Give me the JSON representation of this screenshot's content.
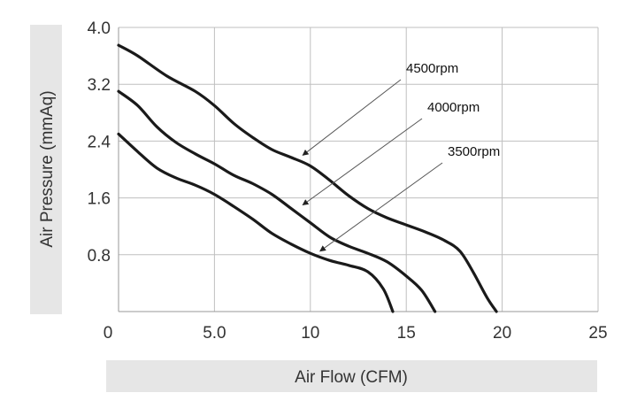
{
  "chart_data": {
    "type": "line",
    "xlabel": "Air Flow (CFM)",
    "ylabel": "Air Pressure (mmAq)",
    "xlim": [
      0,
      25
    ],
    "ylim": [
      0,
      4.0
    ],
    "x_ticks": [
      "0",
      "5.0",
      "10",
      "15",
      "20",
      "25"
    ],
    "x_tick_values": [
      0,
      5,
      10,
      15,
      20,
      25
    ],
    "y_ticks": [
      "0.8",
      "1.6",
      "2.4",
      "3.2",
      "4.0"
    ],
    "y_tick_values": [
      0.8,
      1.6,
      2.4,
      3.2,
      4.0
    ],
    "grid": true,
    "colors": {
      "curve": "#1a1a1a",
      "grid": "#bfbfbf",
      "label_band": "#e6e6e6",
      "arrow": "#555555"
    },
    "series": [
      {
        "name": "4500rpm",
        "points": [
          [
            0,
            3.75
          ],
          [
            1,
            3.6
          ],
          [
            2.5,
            3.32
          ],
          [
            4,
            3.1
          ],
          [
            5,
            2.9
          ],
          [
            6,
            2.65
          ],
          [
            7,
            2.45
          ],
          [
            8,
            2.28
          ],
          [
            9,
            2.17
          ],
          [
            10,
            2.05
          ],
          [
            11,
            1.85
          ],
          [
            12,
            1.63
          ],
          [
            13,
            1.45
          ],
          [
            14,
            1.32
          ],
          [
            15,
            1.22
          ],
          [
            16,
            1.12
          ],
          [
            17,
            1.0
          ],
          [
            17.8,
            0.85
          ],
          [
            18.5,
            0.55
          ],
          [
            19.2,
            0.2
          ],
          [
            19.7,
            0.0
          ]
        ],
        "callout_at": [
          9.6,
          2.2
        ]
      },
      {
        "name": "4000rpm",
        "points": [
          [
            0,
            3.1
          ],
          [
            1,
            2.9
          ],
          [
            2,
            2.6
          ],
          [
            3,
            2.38
          ],
          [
            4,
            2.22
          ],
          [
            5,
            2.08
          ],
          [
            6,
            1.92
          ],
          [
            7,
            1.8
          ],
          [
            8,
            1.65
          ],
          [
            9,
            1.45
          ],
          [
            10,
            1.25
          ],
          [
            11,
            1.05
          ],
          [
            12,
            0.92
          ],
          [
            13,
            0.82
          ],
          [
            14,
            0.7
          ],
          [
            15,
            0.5
          ],
          [
            15.8,
            0.3
          ],
          [
            16.5,
            0.0
          ]
        ],
        "callout_at": [
          9.6,
          1.5
        ]
      },
      {
        "name": "3500rpm",
        "points": [
          [
            0,
            2.5
          ],
          [
            1,
            2.25
          ],
          [
            2,
            2.02
          ],
          [
            3,
            1.88
          ],
          [
            4,
            1.78
          ],
          [
            5,
            1.65
          ],
          [
            6,
            1.48
          ],
          [
            7,
            1.3
          ],
          [
            8,
            1.1
          ],
          [
            9,
            0.95
          ],
          [
            10,
            0.82
          ],
          [
            11,
            0.72
          ],
          [
            12,
            0.65
          ],
          [
            13,
            0.56
          ],
          [
            13.8,
            0.32
          ],
          [
            14.3,
            0.0
          ]
        ],
        "callout_at": [
          10.5,
          0.85
        ]
      }
    ]
  }
}
